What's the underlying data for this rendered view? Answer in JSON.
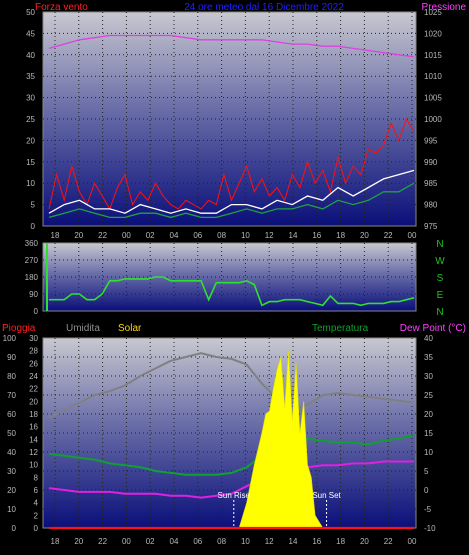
{
  "chart_data": [
    {
      "type": "line",
      "panel": "wind_pressure",
      "title": "24 ore meteo dal 16 Dicembre 2022",
      "left_label": "Forza vento",
      "right_label": "Pressione",
      "x_ticks": [
        "18",
        "20",
        "22",
        "00",
        "02",
        "04",
        "06",
        "08",
        "10",
        "12",
        "14",
        "16",
        "18",
        "20",
        "22",
        "00"
      ],
      "y_left_ticks": [
        0,
        5,
        10,
        15,
        20,
        25,
        30,
        35,
        40,
        45,
        50
      ],
      "y_left_range": [
        0,
        50
      ],
      "y_right_ticks": [
        975,
        980,
        985,
        990,
        995,
        1000,
        1005,
        1010,
        1015,
        1020,
        1025
      ],
      "y_right_range": [
        975,
        1025
      ],
      "grid": true,
      "series": [
        {
          "name": "Pressione",
          "color": "#e040e0",
          "axis": "right",
          "x": [
            0,
            2,
            4,
            6,
            8,
            10,
            12,
            14,
            16,
            18,
            20,
            22,
            24,
            26,
            28,
            30,
            32,
            34,
            36,
            38,
            40,
            42,
            44,
            46,
            48
          ],
          "values": [
            1016.5,
            1017.5,
            1018.5,
            1019,
            1019.5,
            1019.5,
            1019.5,
            1019.5,
            1019.5,
            1019,
            1018.5,
            1018.5,
            1018.5,
            1018.5,
            1018.5,
            1018,
            1017.5,
            1017.5,
            1017,
            1017,
            1016.5,
            1016,
            1015.5,
            1015,
            1014.5
          ]
        },
        {
          "name": "",
          "color": "#ff1010",
          "axis": "left",
          "x": [
            0,
            1,
            2,
            3,
            4,
            5,
            6,
            7,
            8,
            9,
            10,
            11,
            12,
            13,
            14,
            15,
            16,
            17,
            18,
            19,
            20,
            21,
            22,
            23,
            24,
            25,
            26,
            27,
            28,
            29,
            30,
            31,
            32,
            33,
            34,
            35,
            36,
            37,
            38,
            39,
            40,
            41,
            42,
            43,
            44,
            45,
            46,
            47,
            48
          ],
          "values": [
            4,
            12,
            6,
            14,
            8,
            5,
            10,
            7,
            4,
            9,
            12,
            5,
            8,
            6,
            10,
            7,
            5,
            4,
            6,
            5,
            4,
            6,
            5,
            12,
            6,
            10,
            14,
            8,
            11,
            7,
            9,
            6,
            12,
            9,
            15,
            10,
            13,
            8,
            16,
            10,
            14,
            12,
            18,
            17,
            19,
            24,
            20,
            25,
            22
          ]
        },
        {
          "name": "",
          "color": "#ffffff",
          "axis": "left",
          "x": [
            0,
            2,
            4,
            6,
            8,
            10,
            12,
            14,
            16,
            18,
            20,
            22,
            24,
            26,
            28,
            30,
            32,
            34,
            36,
            38,
            40,
            42,
            44,
            46,
            48
          ],
          "values": [
            3,
            5,
            6,
            4,
            4,
            3,
            5,
            4,
            3,
            4,
            3,
            3,
            5,
            5,
            4,
            6,
            5,
            7,
            6,
            9,
            7,
            9,
            11,
            12,
            13
          ]
        },
        {
          "name": "",
          "color": "#20a040",
          "axis": "left",
          "x": [
            0,
            2,
            4,
            6,
            8,
            10,
            12,
            14,
            16,
            18,
            20,
            22,
            24,
            26,
            28,
            30,
            32,
            34,
            36,
            38,
            40,
            42,
            44,
            46,
            48
          ],
          "values": [
            2,
            3,
            4,
            3,
            2,
            2,
            3,
            3,
            2,
            3,
            2,
            2,
            3,
            4,
            3,
            4,
            4,
            5,
            4,
            6,
            5,
            6,
            8,
            8,
            10
          ]
        }
      ]
    },
    {
      "type": "line",
      "panel": "wind_direction",
      "compass_labels": [
        "N",
        "W",
        "S",
        "E",
        "N"
      ],
      "y_ticks": [
        0,
        90,
        180,
        270,
        360
      ],
      "y_range": [
        0,
        360
      ],
      "grid": true,
      "series": [
        {
          "name": "",
          "color": "#30e030",
          "x": [
            0,
            1,
            2,
            3,
            4,
            5,
            6,
            7,
            8,
            9,
            10,
            11,
            12,
            13,
            14,
            15,
            16,
            17,
            18,
            19,
            20,
            21,
            22,
            23,
            24,
            25,
            26,
            27,
            28,
            29,
            30,
            31,
            32,
            33,
            34,
            35,
            36,
            37,
            38,
            39,
            40,
            41,
            42,
            43,
            44,
            45,
            46,
            47,
            48
          ],
          "values": [
            60,
            60,
            60,
            90,
            90,
            60,
            60,
            90,
            160,
            160,
            170,
            170,
            170,
            170,
            180,
            180,
            160,
            160,
            160,
            160,
            160,
            60,
            150,
            150,
            150,
            150,
            160,
            140,
            30,
            50,
            50,
            60,
            60,
            60,
            50,
            40,
            30,
            80,
            40,
            40,
            40,
            30,
            40,
            40,
            40,
            50,
            50,
            60,
            70
          ]
        }
      ]
    },
    {
      "type": "line",
      "panel": "temperature_humidity",
      "labels": {
        "rain": "Pioggia",
        "humidity": "Umidita",
        "solar": "Solar",
        "temperature": "Temperatura",
        "dew_point": "Dew Point (°C)"
      },
      "annotations": [
        "Sun Rise",
        "Sun Set"
      ],
      "x_ticks": [
        "18",
        "20",
        "22",
        "00",
        "02",
        "04",
        "06",
        "08",
        "10",
        "12",
        "14",
        "16",
        "18",
        "20",
        "22",
        "00"
      ],
      "y_left_outer_ticks": [
        0,
        10,
        20,
        30,
        40,
        50,
        60,
        70,
        80,
        90,
        100
      ],
      "y_left_inner_ticks": [
        0,
        2,
        4,
        6,
        8,
        10,
        12,
        14,
        16,
        18,
        20,
        22,
        24,
        26,
        28,
        30
      ],
      "y_right_ticks": [
        -10,
        -5,
        0,
        5,
        10,
        15,
        20,
        25,
        30,
        35,
        40
      ],
      "y_right_range": [
        -10,
        40
      ],
      "grid": true,
      "series": [
        {
          "name": "Umidita",
          "color": "#808080",
          "axis": "humidity",
          "x": [
            0,
            2,
            4,
            6,
            8,
            10,
            12,
            14,
            16,
            18,
            20,
            22,
            24,
            26,
            28,
            30,
            32,
            34,
            36,
            38,
            40,
            42,
            44,
            46,
            48
          ],
          "values": [
            58,
            62,
            66,
            70,
            72,
            75,
            80,
            84,
            88,
            90,
            92,
            90,
            89,
            86,
            76,
            68,
            62,
            65,
            70,
            71,
            70,
            69,
            68,
            67,
            66
          ]
        },
        {
          "name": "Temperatura",
          "color": "#10a030",
          "axis": "temp",
          "x": [
            0,
            2,
            4,
            6,
            8,
            10,
            12,
            14,
            16,
            18,
            20,
            22,
            24,
            26,
            28,
            30,
            32,
            34,
            36,
            38,
            40,
            42,
            44,
            46,
            48
          ],
          "values": [
            9.5,
            9,
            8.5,
            8,
            7,
            6.5,
            6,
            5,
            4.5,
            4,
            4,
            4,
            4.5,
            6,
            9,
            11,
            13,
            13.5,
            13,
            12.5,
            12.5,
            12,
            13,
            13.5,
            14.5
          ]
        },
        {
          "name": "Dew Point",
          "color": "#e020e0",
          "axis": "temp",
          "x": [
            0,
            2,
            4,
            6,
            8,
            10,
            12,
            14,
            16,
            18,
            20,
            22,
            24,
            26,
            28,
            30,
            32,
            34,
            36,
            38,
            40,
            42,
            44,
            46,
            48
          ],
          "values": [
            0.5,
            0,
            -0.5,
            -0.5,
            -0.5,
            -1,
            -1,
            -1,
            -1.5,
            -1.5,
            -2,
            -1.5,
            -1,
            1,
            3,
            4.5,
            5.5,
            6,
            6.5,
            6.5,
            7,
            7,
            7.5,
            7.5,
            7.5
          ]
        },
        {
          "name": "Solar",
          "color": "#ffff00",
          "axis": "solar",
          "x": [
            25,
            26,
            27,
            28,
            28.5,
            29,
            29.5,
            30,
            30.5,
            31,
            31.5,
            32,
            32.5,
            33,
            33.5,
            34,
            34.5,
            35,
            36
          ],
          "values": [
            0,
            4,
            10,
            15,
            18,
            18.5,
            22,
            25,
            27,
            19,
            28,
            17,
            26,
            15,
            20,
            10,
            8,
            2,
            0
          ]
        },
        {
          "name": "Pioggia",
          "color": "#ff1010",
          "axis": "rain",
          "x": [
            0,
            48
          ],
          "values": [
            0,
            0
          ]
        }
      ]
    }
  ]
}
